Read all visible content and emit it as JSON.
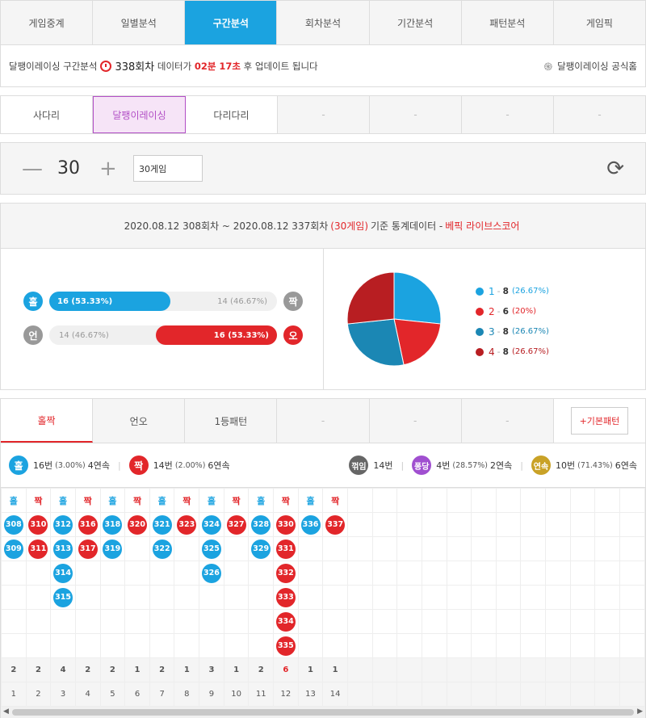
{
  "topnav": [
    "게임중계",
    "일별분석",
    "구간분석",
    "회차분석",
    "기간분석",
    "패턴분석",
    "게임픽"
  ],
  "info": {
    "prefix": "달팽이레이싱 구간분석",
    "round": "338회차",
    "mid": "데이터가",
    "time": "02분 17초",
    "suffix": "후 업데이트 됩니다",
    "site_link": "달팽이레이싱 공식홈"
  },
  "gametabs": [
    "사다리",
    "달팽이레이싱",
    "다리다리",
    "-",
    "-",
    "-",
    "-"
  ],
  "control": {
    "minus": "—",
    "value": "30",
    "plus": "+",
    "select": "30게임",
    "refresh": "⟳"
  },
  "stats": {
    "range": "2020.08.12 308회차 ~ 2020.08.12 337회차",
    "games": "(30게임)",
    "mid": "기준 통계데이터 -",
    "brand": "베픽 라이브스코어",
    "bars": [
      {
        "left": "홀",
        "right": "짝",
        "left_label": "16 (53.33%)",
        "right_label": "14 (46.67%)",
        "left_fraction": 0.5333,
        "highlight": "left"
      },
      {
        "left": "언",
        "right": "오",
        "left_label": "14 (46.67%)",
        "right_label": "16 (53.33%)",
        "left_fraction": 0.4667,
        "highlight": "right"
      }
    ],
    "legend": [
      {
        "n": "1",
        "count": "8",
        "pct": "(26.67%)",
        "color": "#1ba3e0",
        "value": 8
      },
      {
        "n": "2",
        "count": "6",
        "pct": "(20%)",
        "color": "#e2262a",
        "value": 6
      },
      {
        "n": "3",
        "count": "8",
        "pct": "(26.67%)",
        "color": "#1b87b4",
        "value": 8
      },
      {
        "n": "4",
        "count": "8",
        "pct": "(26.67%)",
        "color": "#b81e22",
        "value": 8
      }
    ]
  },
  "pattabs": [
    "홀짝",
    "언오",
    "1등패턴",
    "-",
    "-",
    "-",
    "+기본패턴"
  ],
  "summary": {
    "odd": {
      "icon": "홀",
      "count": "16번",
      "pct": "(3.00%)",
      "streak": "4연속"
    },
    "even": {
      "icon": "짝",
      "count": "14번",
      "pct": "(2.00%)",
      "streak": "6연속"
    },
    "break": {
      "icon": "꺾임",
      "count": "14번"
    },
    "pong": {
      "icon": "퐁당",
      "count": "4번",
      "pct": "(28.57%)",
      "streak": "2연속"
    },
    "streak": {
      "icon": "연속",
      "count": "10번",
      "pct": "(71.43%)",
      "streak": "6연속"
    }
  },
  "colors": {
    "blue": "#1ba3e0",
    "red": "#e2262a",
    "gray": "#999999",
    "darkgray": "#666666",
    "purple": "#a04fd0",
    "gold": "#c9a227"
  },
  "grid": {
    "columns": [
      {
        "h": "홀",
        "c": "b",
        "balls": [
          "308",
          "309"
        ],
        "count": "2"
      },
      {
        "h": "짝",
        "c": "r",
        "balls": [
          "310",
          "311"
        ],
        "count": "2"
      },
      {
        "h": "홀",
        "c": "b",
        "balls": [
          "312",
          "313",
          "314",
          "315"
        ],
        "count": "4"
      },
      {
        "h": "짝",
        "c": "r",
        "balls": [
          "316",
          "317"
        ],
        "count": "2"
      },
      {
        "h": "홀",
        "c": "b",
        "balls": [
          "318",
          "319"
        ],
        "count": "2"
      },
      {
        "h": "짝",
        "c": "r",
        "balls": [
          "320"
        ],
        "count": "1"
      },
      {
        "h": "홀",
        "c": "b",
        "balls": [
          "321",
          "322"
        ],
        "count": "2"
      },
      {
        "h": "짝",
        "c": "r",
        "balls": [
          "323"
        ],
        "count": "1"
      },
      {
        "h": "홀",
        "c": "b",
        "balls": [
          "324",
          "325",
          "326"
        ],
        "count": "3"
      },
      {
        "h": "짝",
        "c": "r",
        "balls": [
          "327"
        ],
        "count": "1"
      },
      {
        "h": "홀",
        "c": "b",
        "balls": [
          "328",
          "329"
        ],
        "count": "2"
      },
      {
        "h": "짝",
        "c": "r",
        "balls": [
          "330",
          "331",
          "332",
          "333",
          "334",
          "335"
        ],
        "count": "6"
      },
      {
        "h": "홀",
        "c": "b",
        "balls": [
          "336"
        ],
        "count": "1"
      },
      {
        "h": "짝",
        "c": "r",
        "balls": [
          "337"
        ],
        "count": "1"
      }
    ],
    "index": [
      "1",
      "2",
      "3",
      "4",
      "5",
      "6",
      "7",
      "8",
      "9",
      "10",
      "11",
      "12",
      "13",
      "14"
    ]
  }
}
